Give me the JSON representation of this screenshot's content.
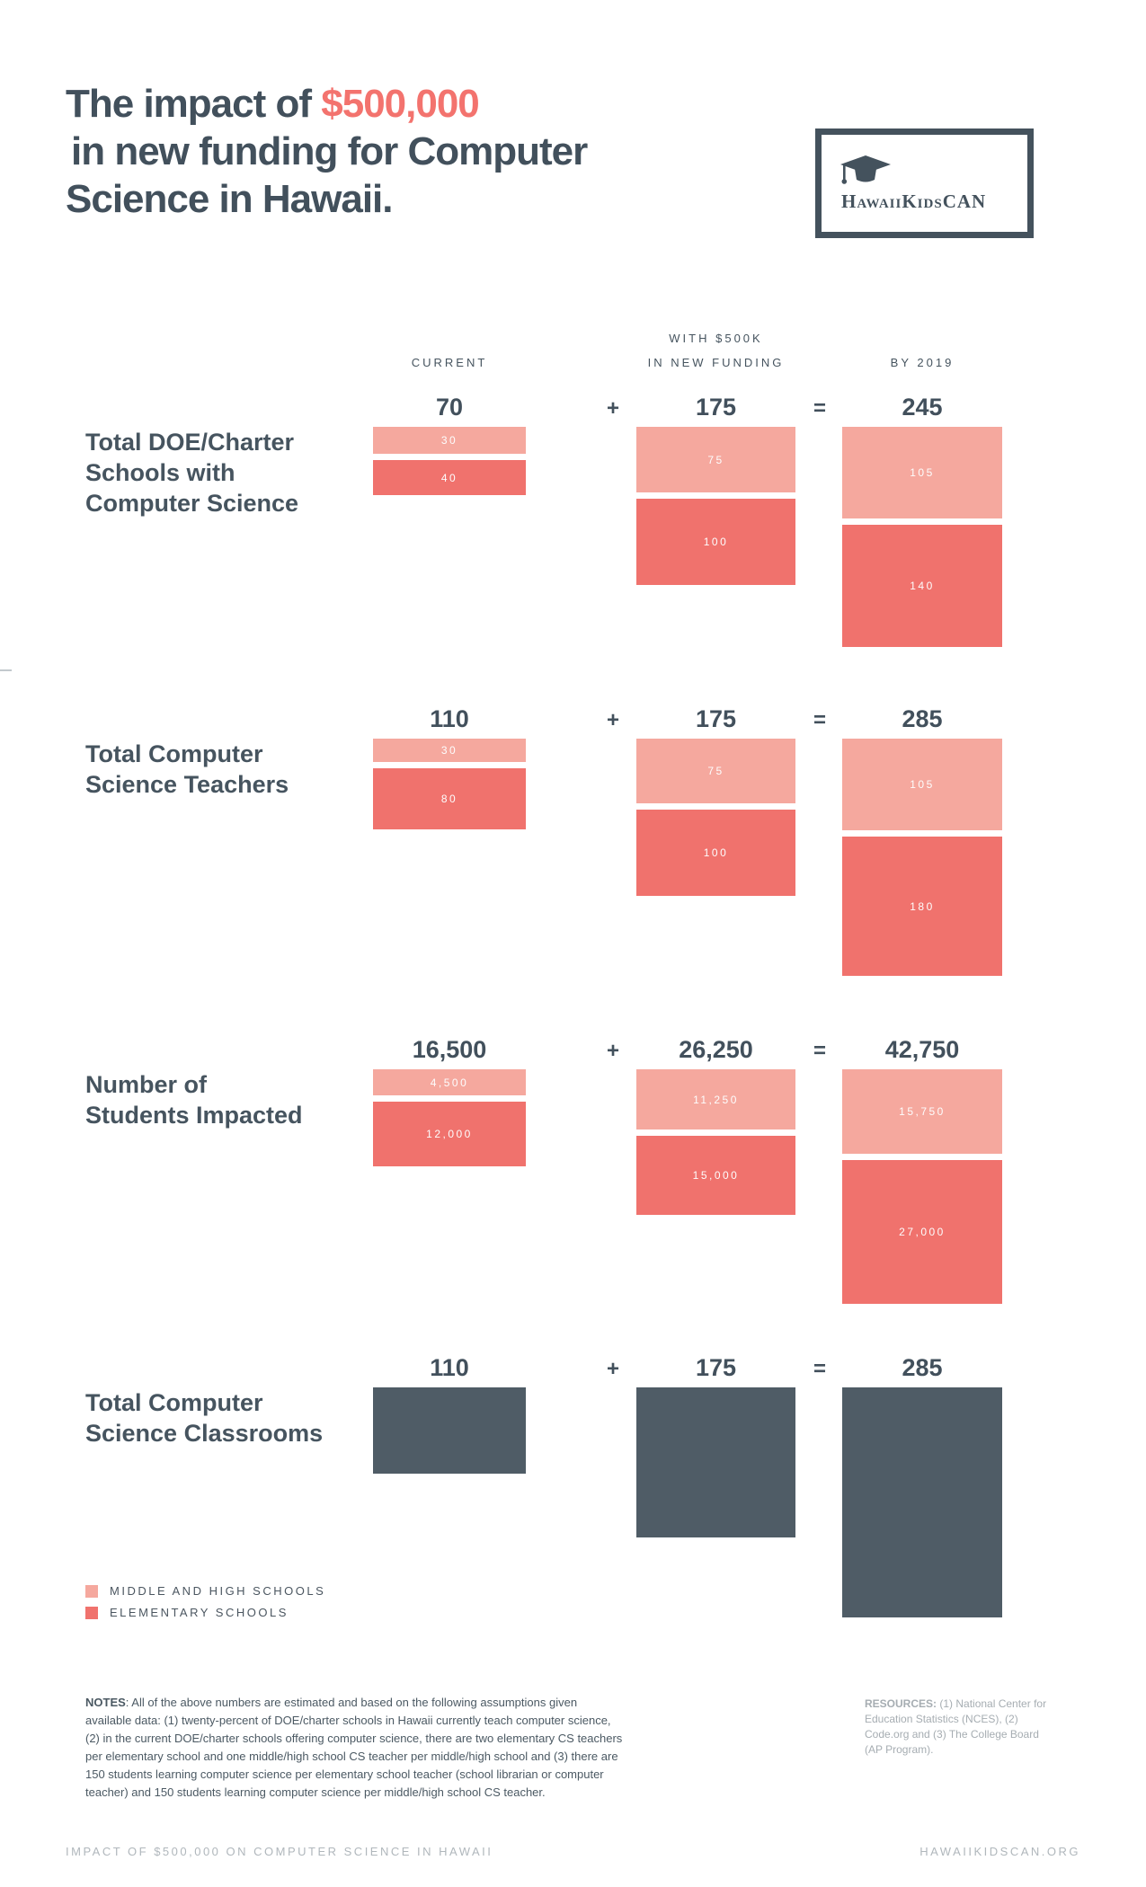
{
  "page": {
    "title": {
      "line1_prefix": "The impact of ",
      "line1_accent": "$500,000",
      "line2": "in new funding for Computer",
      "line3": "Science in Hawaii."
    },
    "logo": {
      "text": "HawaiiKidsCAN",
      "icon": "graduation-cap-icon"
    },
    "headers": {
      "current": "CURRENT",
      "funding_line1": "WITH $500K",
      "funding_line2": "IN NEW FUNDING",
      "by2019": "BY 2019"
    },
    "operators": {
      "plus": "+",
      "equals": "="
    },
    "legend": [
      {
        "label": "MIDDLE AND HIGH SCHOOLS",
        "color": "#f5a89e"
      },
      {
        "label": "ELEMENTARY SCHOOLS",
        "color": "#f0726d"
      }
    ],
    "notes": {
      "label": "NOTES",
      "text": ": All of the above numbers are estimated and based on the following assumptions given available data: (1) twenty-percent of DOE/charter schools in Hawaii currently teach computer science, (2) in the current DOE/charter schools offering computer science, there are two elementary CS teachers per elementary school and one middle/high school CS teacher per middle/high school and (3) there are 150 students learning computer science per elementary school teacher (school librarian or computer teacher) and 150 students learning computer science per middle/high school CS teacher."
    },
    "resources": {
      "label": "RESOURCES:",
      "text": " (1) National Center for Education Statistics (NCES), (2) Code.org and (3) The College Board (AP Program)."
    },
    "footer": {
      "left": "IMPACT OF $500,000 ON COMPUTER SCIENCE IN HAWAII",
      "right": "HAWAIIKIDSCAN.ORG"
    },
    "colors": {
      "slate_text": "#42505c",
      "accent": "#f3736e",
      "middle_high_salmon": "#f5a89e",
      "elementary_salmon": "#f0726d",
      "classroom_bar": "#4f5c66"
    }
  },
  "chart_data": [
    {
      "type": "bar",
      "title": "Total DOE/Charter Schools with Computer Science",
      "label_lines": [
        "Total DOE/Charter",
        "Schools with",
        "Computer Science"
      ],
      "totals": {
        "current": "70",
        "funding": "175",
        "result": "245"
      },
      "categories": [
        "CURRENT",
        "WITH $500K IN NEW FUNDING",
        "BY 2019"
      ],
      "bars": {
        "current": [
          {
            "series": "MIDDLE AND HIGH SCHOOLS",
            "value": 30,
            "label": "30"
          },
          {
            "series": "ELEMENTARY SCHOOLS",
            "value": 40,
            "label": "40"
          }
        ],
        "funding": [
          {
            "series": "MIDDLE AND HIGH SCHOOLS",
            "value": 75,
            "label": "75"
          },
          {
            "series": "ELEMENTARY SCHOOLS",
            "value": 100,
            "label": "100"
          }
        ],
        "result": [
          {
            "series": "MIDDLE AND HIGH SCHOOLS",
            "value": 105,
            "label": "105"
          },
          {
            "series": "ELEMENTARY SCHOOLS",
            "value": 140,
            "label": "140"
          }
        ]
      }
    },
    {
      "type": "bar",
      "title": "Total Computer Science Teachers",
      "label_lines": [
        "Total Computer",
        "Science Teachers"
      ],
      "totals": {
        "current": "110",
        "funding": "175",
        "result": "285"
      },
      "categories": [
        "CURRENT",
        "WITH $500K IN NEW FUNDING",
        "BY 2019"
      ],
      "bars": {
        "current": [
          {
            "series": "MIDDLE AND HIGH SCHOOLS",
            "value": 30,
            "label": "30"
          },
          {
            "series": "ELEMENTARY SCHOOLS",
            "value": 80,
            "label": "80"
          }
        ],
        "funding": [
          {
            "series": "MIDDLE AND HIGH SCHOOLS",
            "value": 75,
            "label": "75"
          },
          {
            "series": "ELEMENTARY SCHOOLS",
            "value": 100,
            "label": "100"
          }
        ],
        "result": [
          {
            "series": "MIDDLE AND HIGH SCHOOLS",
            "value": 105,
            "label": "105"
          },
          {
            "series": "ELEMENTARY SCHOOLS",
            "value": 180,
            "label": "180"
          }
        ]
      }
    },
    {
      "type": "bar",
      "title": "Number of Students Impacted",
      "label_lines": [
        "Number of",
        "Students Impacted"
      ],
      "totals": {
        "current": "16,500",
        "funding": "26,250",
        "result": "42,750"
      },
      "categories": [
        "CURRENT",
        "WITH $500K IN NEW FUNDING",
        "BY 2019"
      ],
      "bars": {
        "current": [
          {
            "series": "MIDDLE AND HIGH SCHOOLS",
            "value": 4500,
            "label": "4,500"
          },
          {
            "series": "ELEMENTARY SCHOOLS",
            "value": 12000,
            "label": "12,000"
          }
        ],
        "funding": [
          {
            "series": "MIDDLE AND HIGH SCHOOLS",
            "value": 11250,
            "label": "11,250"
          },
          {
            "series": "ELEMENTARY SCHOOLS",
            "value": 15000,
            "label": "15,000"
          }
        ],
        "result": [
          {
            "series": "MIDDLE AND HIGH SCHOOLS",
            "value": 15750,
            "label": "15,750"
          },
          {
            "series": "ELEMENTARY SCHOOLS",
            "value": 27000,
            "label": "27,000"
          }
        ]
      }
    },
    {
      "type": "bar",
      "title": "Total Computer Science Classrooms",
      "label_lines": [
        "Total Computer",
        "Science Classrooms"
      ],
      "totals": {
        "current": "110",
        "funding": "175",
        "result": "285"
      },
      "categories": [
        "CURRENT",
        "WITH $500K IN NEW FUNDING",
        "BY 2019"
      ],
      "bars": {
        "current": [
          {
            "series": "ALL CLASSROOMS",
            "value": 110,
            "label": ""
          }
        ],
        "funding": [
          {
            "series": "ALL CLASSROOMS",
            "value": 175,
            "label": ""
          }
        ],
        "result": [
          {
            "series": "ALL CLASSROOMS",
            "value": 285,
            "label": ""
          }
        ]
      }
    }
  ]
}
